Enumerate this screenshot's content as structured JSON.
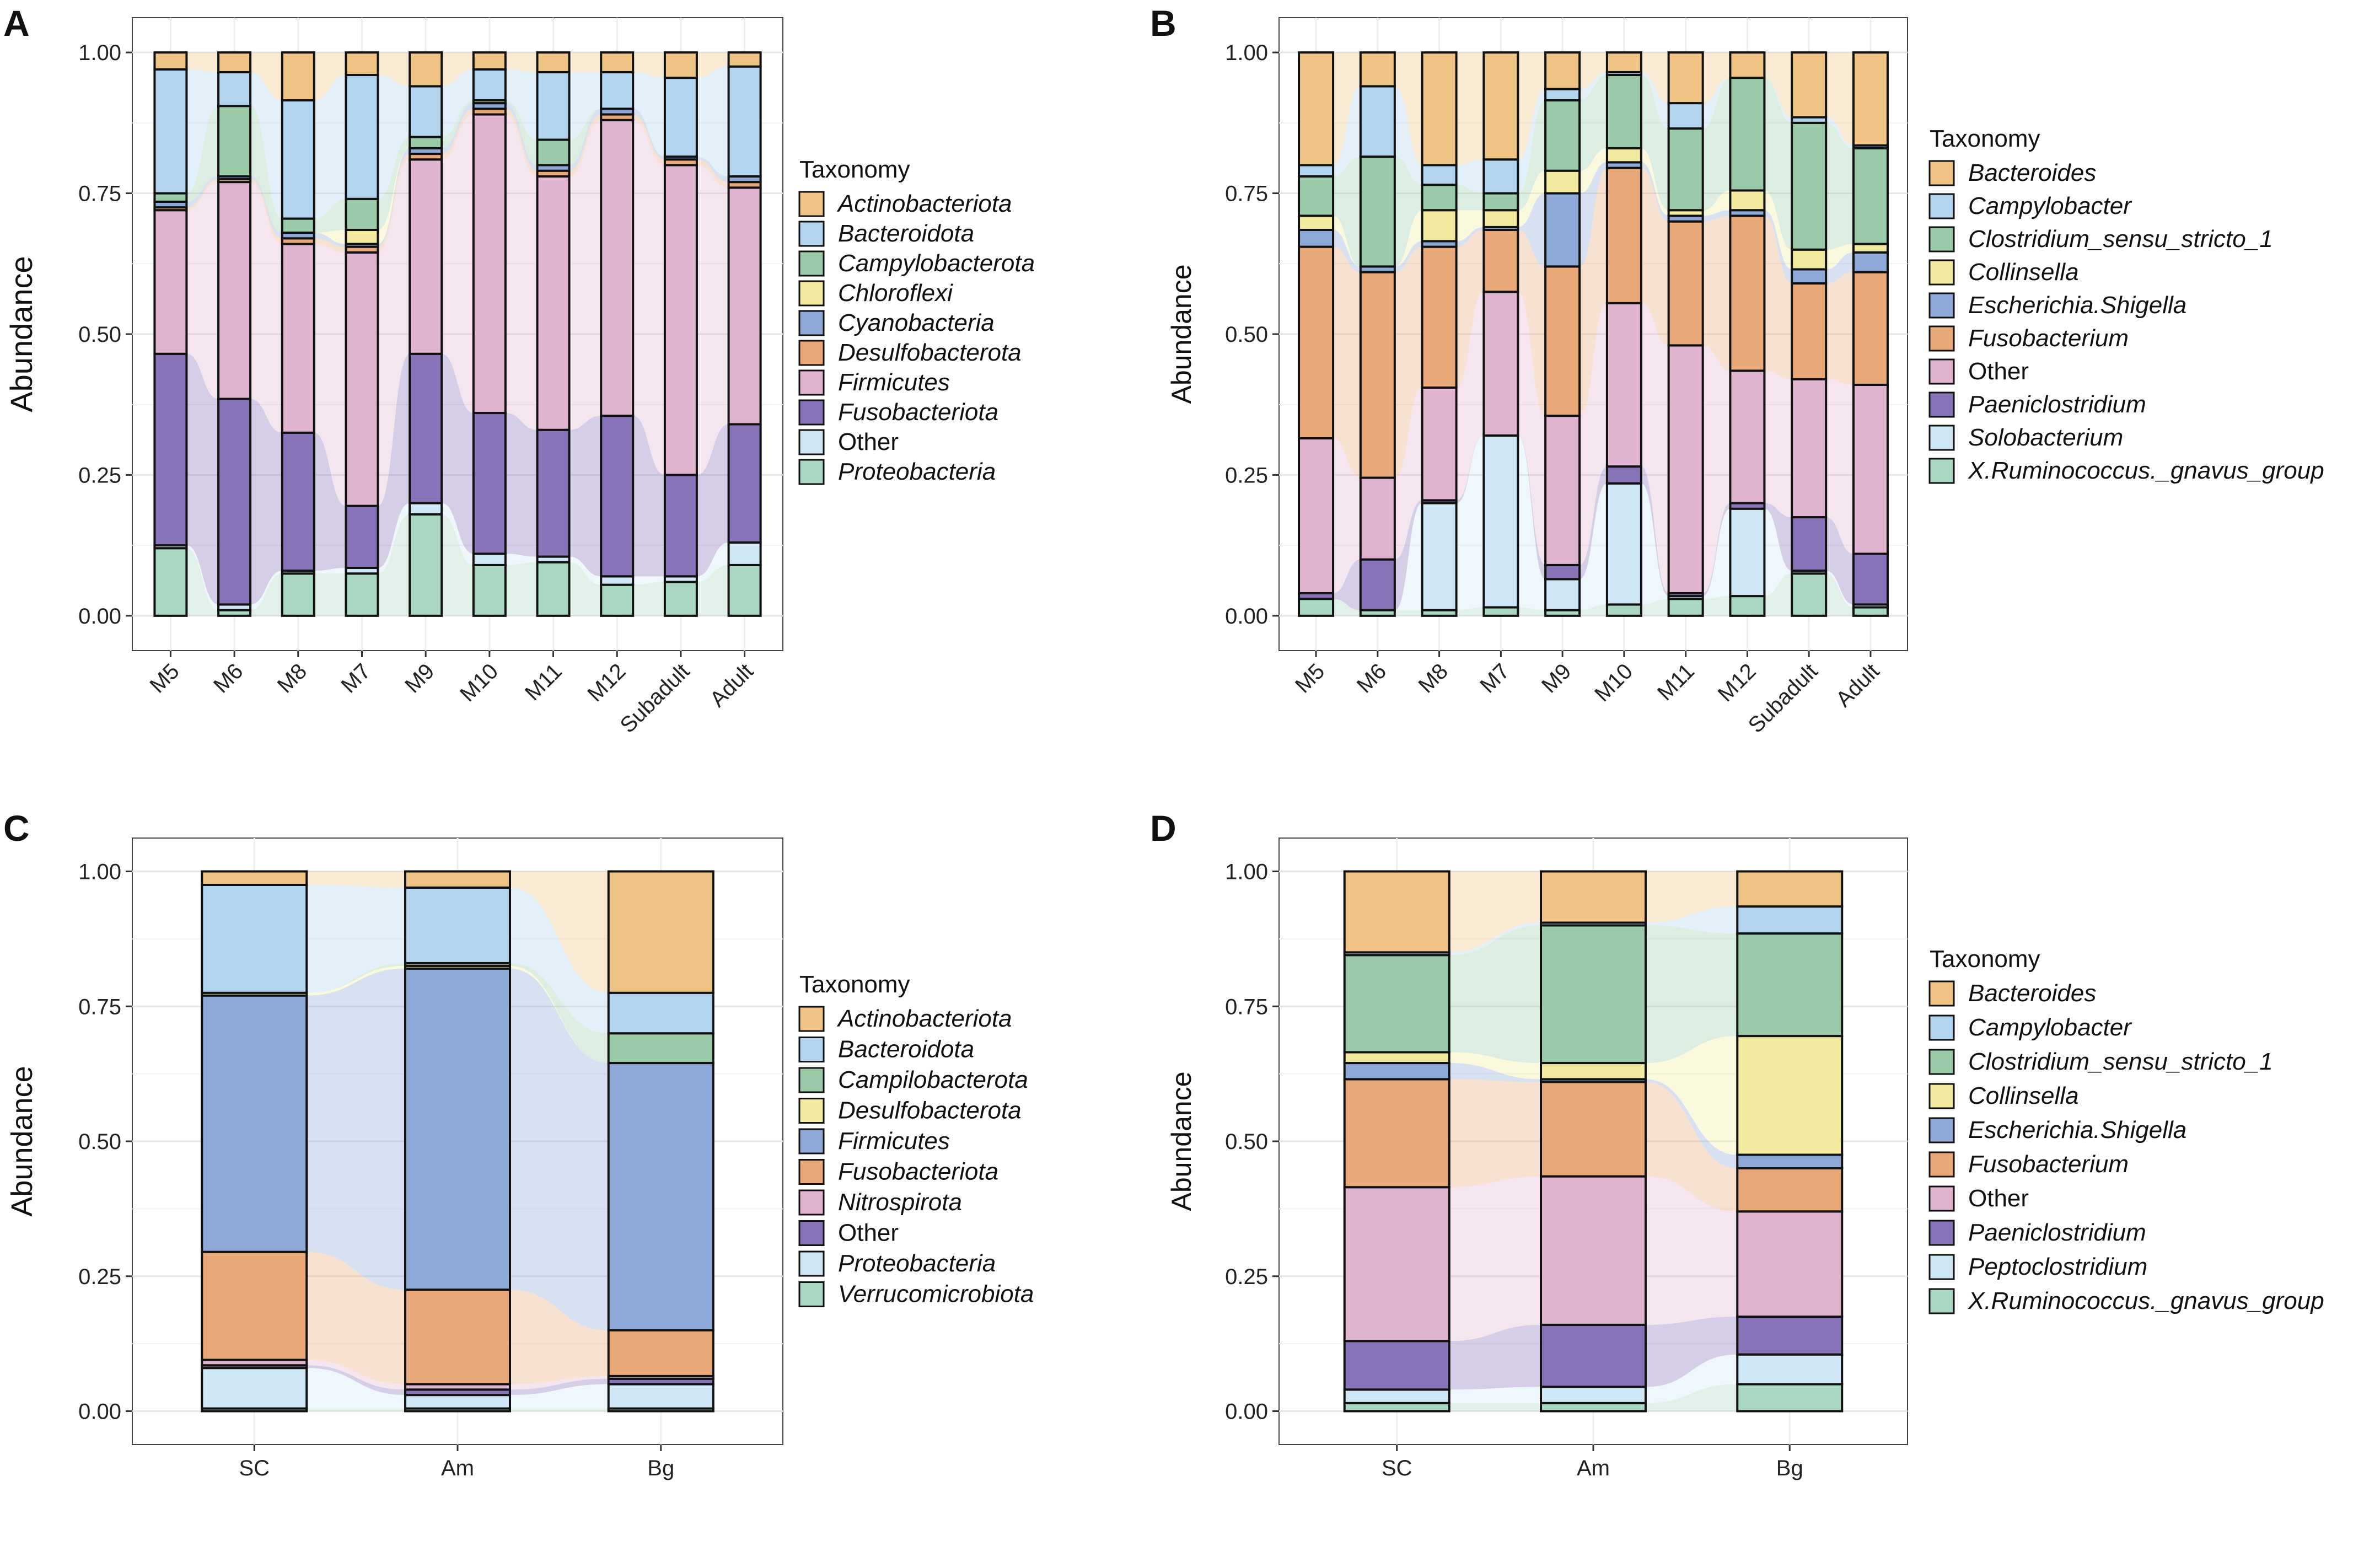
{
  "figure": {
    "panel_labels": [
      "A",
      "B",
      "C",
      "D"
    ]
  },
  "chart_data": [
    {
      "type": "bar",
      "stacked": true,
      "panel": "A",
      "ylabel": "Abundance",
      "xlabel": "",
      "ylim": [
        0,
        1
      ],
      "yticks": [
        "0.00",
        "0.25",
        "0.50",
        "0.75",
        "1.00"
      ],
      "legend_title": "Taxonomy",
      "legend_italic_except": [
        "Other"
      ],
      "legend": [
        "Actinobacteriota",
        "Bacteroidota",
        "Campylobacterota",
        "Chloroflexi",
        "Cyanobacteria",
        "Desulfobacterota",
        "Firmicutes",
        "Fusobacteriota",
        "Other",
        "Proteobacteria"
      ],
      "colors": [
        "#efc383",
        "#b2d4ee",
        "#9bcaa8",
        "#f2ea9f",
        "#8ea8d8",
        "#e8a878",
        "#e0b4d1",
        "#8872b8",
        "#cfe7f5",
        "#a9d7c1"
      ],
      "categories": [
        "M5",
        "M6",
        "M8",
        "M7",
        "M9",
        "M10",
        "M11",
        "M12",
        "Subadult",
        "Adult"
      ],
      "series": [
        {
          "name": "Proteobacteria",
          "values": [
            0.12,
            0.01,
            0.075,
            0.075,
            0.18,
            0.09,
            0.095,
            0.055,
            0.06,
            0.09
          ]
        },
        {
          "name": "Other",
          "values": [
            0.005,
            0.01,
            0.005,
            0.01,
            0.02,
            0.02,
            0.01,
            0.015,
            0.01,
            0.04
          ]
        },
        {
          "name": "Fusobacteriota",
          "values": [
            0.34,
            0.365,
            0.245,
            0.11,
            0.265,
            0.25,
            0.225,
            0.285,
            0.18,
            0.21
          ]
        },
        {
          "name": "Firmicutes",
          "values": [
            0.255,
            0.385,
            0.335,
            0.45,
            0.345,
            0.53,
            0.45,
            0.525,
            0.55,
            0.42
          ]
        },
        {
          "name": "Desulfobacterota",
          "values": [
            0.005,
            0.005,
            0.01,
            0.01,
            0.01,
            0.01,
            0.01,
            0.01,
            0.01,
            0.01
          ]
        },
        {
          "name": "Cyanobacteria",
          "values": [
            0.01,
            0.005,
            0.01,
            0.005,
            0.01,
            0.01,
            0.01,
            0.01,
            0.005,
            0.01
          ]
        },
        {
          "name": "Chloroflexi",
          "values": [
            0.0,
            0.0,
            0.0,
            0.025,
            0.0,
            0.0,
            0.0,
            0.0,
            0.0,
            0.0
          ]
        },
        {
          "name": "Campylobacterota",
          "values": [
            0.015,
            0.125,
            0.025,
            0.055,
            0.02,
            0.005,
            0.045,
            0.0,
            0.0,
            0.0
          ]
        },
        {
          "name": "Bacteroidota",
          "values": [
            0.22,
            0.06,
            0.21,
            0.22,
            0.09,
            0.055,
            0.12,
            0.065,
            0.14,
            0.195
          ]
        },
        {
          "name": "Actinobacteriota",
          "values": [
            0.03,
            0.035,
            0.085,
            0.04,
            0.06,
            0.03,
            0.035,
            0.035,
            0.045,
            0.025
          ]
        }
      ]
    },
    {
      "type": "bar",
      "stacked": true,
      "panel": "B",
      "ylabel": "Abundance",
      "xlabel": "",
      "ylim": [
        0,
        1
      ],
      "yticks": [
        "0.00",
        "0.25",
        "0.50",
        "0.75",
        "1.00"
      ],
      "legend_title": "Taxonomy",
      "legend_italic_except": [
        "Other"
      ],
      "legend": [
        "Bacteroides",
        "Campylobacter",
        "Clostridium_sensu_stricto_1",
        "Collinsella",
        "Escherichia.Shigella",
        "Fusobacterium",
        "Other",
        "Paeniclostridium",
        "Solobacterium",
        "X.Ruminococcus._gnavus_group"
      ],
      "colors": [
        "#efc383",
        "#b2d4ee",
        "#9bcaa8",
        "#f2ea9f",
        "#8ea8d8",
        "#e8a878",
        "#e0b4d1",
        "#8872b8",
        "#cfe7f5",
        "#a9d7c1"
      ],
      "categories": [
        "M5",
        "M6",
        "M8",
        "M7",
        "M9",
        "M10",
        "M11",
        "M12",
        "Subadult",
        "Adult"
      ],
      "series": [
        {
          "name": "X.Ruminococcus._gnavus_group",
          "values": [
            0.03,
            0.01,
            0.01,
            0.015,
            0.01,
            0.02,
            0.03,
            0.035,
            0.075,
            0.015
          ]
        },
        {
          "name": "Solobacterium",
          "values": [
            0.0,
            0.0,
            0.19,
            0.305,
            0.055,
            0.215,
            0.005,
            0.155,
            0.005,
            0.005
          ]
        },
        {
          "name": "Paeniclostridium",
          "values": [
            0.01,
            0.09,
            0.005,
            0.0,
            0.025,
            0.03,
            0.005,
            0.01,
            0.095,
            0.09
          ]
        },
        {
          "name": "Other",
          "values": [
            0.275,
            0.145,
            0.2,
            0.255,
            0.265,
            0.29,
            0.44,
            0.235,
            0.245,
            0.3
          ]
        },
        {
          "name": "Fusobacterium",
          "values": [
            0.34,
            0.365,
            0.25,
            0.11,
            0.265,
            0.24,
            0.22,
            0.275,
            0.17,
            0.2
          ]
        },
        {
          "name": "Escherichia.Shigella",
          "values": [
            0.03,
            0.01,
            0.01,
            0.005,
            0.13,
            0.01,
            0.01,
            0.01,
            0.025,
            0.035
          ]
        },
        {
          "name": "Collinsella",
          "values": [
            0.025,
            0.0,
            0.055,
            0.03,
            0.04,
            0.025,
            0.01,
            0.035,
            0.035,
            0.015
          ]
        },
        {
          "name": "Clostridium_sensu_stricto_1",
          "values": [
            0.07,
            0.195,
            0.045,
            0.03,
            0.125,
            0.13,
            0.145,
            0.2,
            0.225,
            0.17
          ]
        },
        {
          "name": "Campylobacter",
          "values": [
            0.02,
            0.125,
            0.035,
            0.06,
            0.02,
            0.005,
            0.045,
            0.0,
            0.01,
            0.005
          ]
        },
        {
          "name": "Bacteroides",
          "values": [
            0.2,
            0.06,
            0.2,
            0.19,
            0.065,
            0.035,
            0.09,
            0.045,
            0.115,
            0.165
          ]
        }
      ]
    },
    {
      "type": "bar",
      "stacked": true,
      "panel": "C",
      "ylabel": "Abundance",
      "xlabel": "",
      "ylim": [
        0,
        1
      ],
      "yticks": [
        "0.00",
        "0.25",
        "0.50",
        "0.75",
        "1.00"
      ],
      "legend_title": "Taxonomy",
      "legend_italic_except": [
        "Other"
      ],
      "legend": [
        "Actinobacteriota",
        "Bacteroidota",
        "Campilobacterota",
        "Desulfobacterota",
        "Firmicutes",
        "Fusobacteriota",
        "Nitrospirota",
        "Other",
        "Proteobacteria",
        "Verrucomicrobiota"
      ],
      "colors": [
        "#efc383",
        "#b2d4ee",
        "#9bcaa8",
        "#f2ea9f",
        "#8ea8d8",
        "#e8a878",
        "#e0b4d1",
        "#8872b8",
        "#cfe7f5",
        "#a9d7c1"
      ],
      "categories": [
        "SC",
        "Am",
        "Bg"
      ],
      "series": [
        {
          "name": "Verrucomicrobiota",
          "values": [
            0.005,
            0.005,
            0.005
          ]
        },
        {
          "name": "Proteobacteria",
          "values": [
            0.075,
            0.025,
            0.045
          ]
        },
        {
          "name": "Other",
          "values": [
            0.005,
            0.01,
            0.01
          ]
        },
        {
          "name": "Nitrospirota",
          "values": [
            0.01,
            0.01,
            0.005
          ]
        },
        {
          "name": "Fusobacteriota",
          "values": [
            0.2,
            0.175,
            0.085
          ]
        },
        {
          "name": "Firmicutes",
          "values": [
            0.475,
            0.595,
            0.495
          ]
        },
        {
          "name": "Desulfobacterota",
          "values": [
            0.005,
            0.005,
            0.0
          ]
        },
        {
          "name": "Campilobacterota",
          "values": [
            0.0,
            0.005,
            0.055
          ]
        },
        {
          "name": "Bacteroidota",
          "values": [
            0.2,
            0.14,
            0.075
          ]
        },
        {
          "name": "Actinobacteriota",
          "values": [
            0.025,
            0.03,
            0.225
          ]
        }
      ]
    },
    {
      "type": "bar",
      "stacked": true,
      "panel": "D",
      "ylabel": "Abundance",
      "xlabel": "",
      "ylim": [
        0,
        1
      ],
      "yticks": [
        "0.00",
        "0.25",
        "0.50",
        "0.75",
        "1.00"
      ],
      "legend_title": "Taxonomy",
      "legend_italic_except": [
        "Other"
      ],
      "legend": [
        "Bacteroides",
        "Campylobacter",
        "Clostridium_sensu_stricto_1",
        "Collinsella",
        "Escherichia.Shigella",
        "Fusobacterium",
        "Other",
        "Paeniclostridium",
        "Peptoclostridium",
        "X.Ruminococcus._gnavus_group"
      ],
      "colors": [
        "#efc383",
        "#b2d4ee",
        "#9bcaa8",
        "#f2ea9f",
        "#8ea8d8",
        "#e8a878",
        "#e0b4d1",
        "#8872b8",
        "#cfe7f5",
        "#a9d7c1"
      ],
      "categories": [
        "SC",
        "Am",
        "Bg"
      ],
      "series": [
        {
          "name": "X.Ruminococcus._gnavus_group",
          "values": [
            0.015,
            0.015,
            0.05
          ]
        },
        {
          "name": "Peptoclostridium",
          "values": [
            0.025,
            0.03,
            0.055
          ]
        },
        {
          "name": "Paeniclostridium",
          "values": [
            0.09,
            0.115,
            0.07
          ]
        },
        {
          "name": "Other",
          "values": [
            0.285,
            0.275,
            0.195
          ]
        },
        {
          "name": "Fusobacterium",
          "values": [
            0.2,
            0.175,
            0.08
          ]
        },
        {
          "name": "Escherichia.Shigella",
          "values": [
            0.03,
            0.005,
            0.025
          ]
        },
        {
          "name": "Collinsella",
          "values": [
            0.02,
            0.03,
            0.22
          ]
        },
        {
          "name": "Clostridium_sensu_stricto_1",
          "values": [
            0.18,
            0.255,
            0.19
          ]
        },
        {
          "name": "Campylobacter",
          "values": [
            0.005,
            0.005,
            0.05
          ]
        },
        {
          "name": "Bacteroides",
          "values": [
            0.15,
            0.095,
            0.065
          ]
        }
      ]
    }
  ]
}
